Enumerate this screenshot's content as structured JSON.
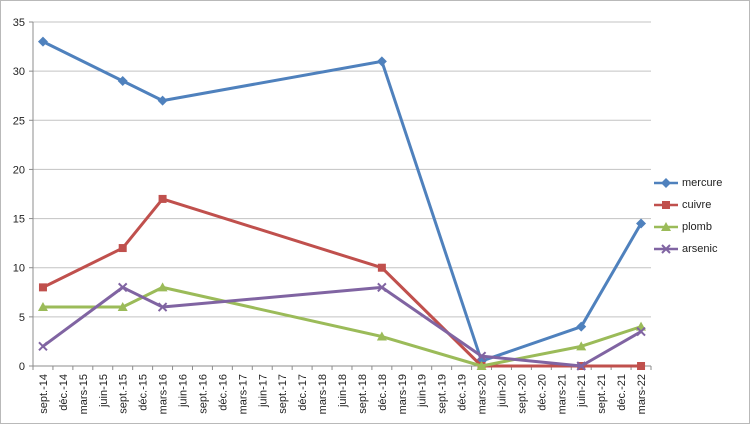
{
  "chart_data": {
    "type": "line",
    "title": "",
    "xlabel": "",
    "ylabel": "",
    "categories": [
      "sept.-14",
      "déc.-14",
      "mars-15",
      "juin-15",
      "sept.-15",
      "déc.-15",
      "mars-16",
      "juin-16",
      "sept.-16",
      "déc.-16",
      "mars-17",
      "juin-17",
      "sept.-17",
      "déc.-17",
      "mars-18",
      "juin-18",
      "sept.-18",
      "déc.-18",
      "mars-19",
      "juin-19",
      "sept.-19",
      "déc.-19",
      "mars-20",
      "juin-20",
      "sept.-20",
      "déc.-20",
      "mars-21",
      "juin-21",
      "sept.-21",
      "déc.-21",
      "mars-22"
    ],
    "sample_categories": [
      "sept.-14",
      "sept.-15",
      "mars-16",
      "déc.-18",
      "mars-20",
      "juin-21",
      "mars-22"
    ],
    "sample_indices": [
      0,
      4,
      6,
      17,
      22,
      27,
      30
    ],
    "series": [
      {
        "name": "mercure",
        "color": "#4F81BD",
        "marker": "diamond",
        "values": [
          33,
          29,
          27,
          31,
          0.5,
          4,
          14.5
        ]
      },
      {
        "name": "cuivre",
        "color": "#C0504D",
        "marker": "square",
        "values": [
          8,
          12,
          17,
          10,
          0,
          0,
          0
        ]
      },
      {
        "name": "plomb",
        "color": "#9BBB59",
        "marker": "triangle",
        "values": [
          6,
          6,
          8,
          3,
          0,
          2,
          4
        ]
      },
      {
        "name": "arsenic",
        "color": "#8064A2",
        "marker": "x",
        "values": [
          2,
          8,
          6,
          8,
          1,
          0,
          3.5
        ]
      }
    ],
    "ylim": [
      0,
      35
    ],
    "ytick_interval": 5,
    "y_tick_labels": [
      "0",
      "5",
      "10",
      "15",
      "20",
      "25",
      "30",
      "35"
    ],
    "grid": true,
    "legend_position": "right",
    "gridline_color": "#c3c3c3",
    "axis_color": "#8c8c8c"
  }
}
